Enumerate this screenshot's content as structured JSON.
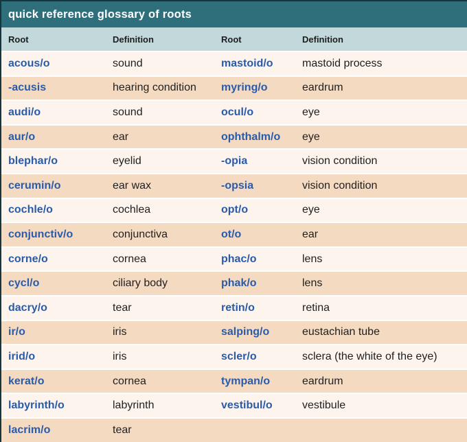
{
  "title": "quick reference glossary of roots",
  "columns": [
    "Root",
    "Definition",
    "Root",
    "Definition"
  ],
  "rows": [
    [
      "acous/o",
      "sound",
      "mastoid/o",
      "mastoid process"
    ],
    [
      "-acusis",
      "hearing condition",
      "myring/o",
      "eardrum"
    ],
    [
      "audi/o",
      "sound",
      "ocul/o",
      "eye"
    ],
    [
      "aur/o",
      "ear",
      "ophthalm/o",
      "eye"
    ],
    [
      "blephar/o",
      "eyelid",
      "-opia",
      "vision condition"
    ],
    [
      "cerumin/o",
      "ear wax",
      "-opsia",
      "vision condition"
    ],
    [
      "cochle/o",
      "cochlea",
      "opt/o",
      "eye"
    ],
    [
      "conjunctiv/o",
      "conjunctiva",
      "ot/o",
      "ear"
    ],
    [
      "corne/o",
      "cornea",
      "phac/o",
      "lens"
    ],
    [
      "cycl/o",
      "ciliary body",
      "phak/o",
      "lens"
    ],
    [
      "dacry/o",
      "tear",
      "retin/o",
      "retina"
    ],
    [
      "ir/o",
      "iris",
      "salping/o",
      "eustachian tube"
    ],
    [
      "irid/o",
      "iris",
      "scler/o",
      "sclera (the white of the eye)"
    ],
    [
      "kerat/o",
      "cornea",
      "tympan/o",
      "eardrum"
    ],
    [
      "labyrinth/o",
      "labyrinth",
      "vestibul/o",
      "vestibule"
    ],
    [
      "lacrim/o",
      "tear",
      "",
      ""
    ]
  ],
  "colors": {
    "title_bar": "#2f6f7b",
    "header_row": "#c3d8da",
    "row_light": "#fdf4ed",
    "row_dark": "#f5dac2",
    "root_text": "#2a5ba9",
    "definition_text": "#1f1f1f",
    "row_separator": "#ffffff",
    "outer_border": "#17353d"
  }
}
